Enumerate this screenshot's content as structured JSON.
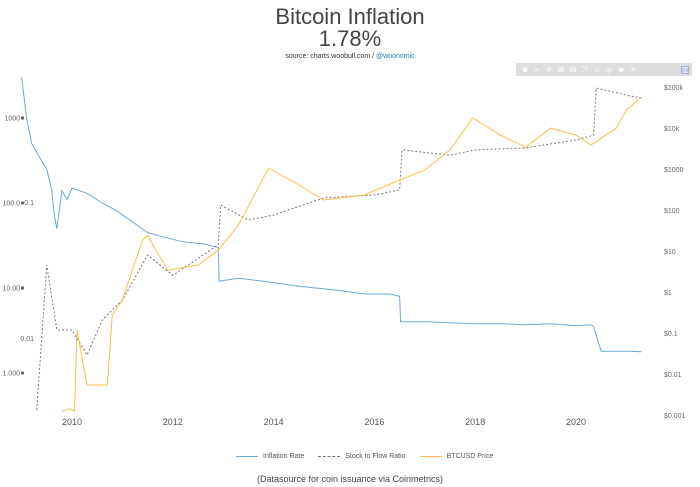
{
  "title": "Bitcoin Inflation",
  "subtitle": "1.78%",
  "source_prefix": "source: charts.woobull.com / ",
  "source_link": "@woonomic",
  "note": "(Datasource for coin issuance via Coinmetrics)",
  "modebar": [
    "camera-icon",
    "zoom-icon",
    "pan-icon",
    "zoom-in-icon",
    "zoom-out-icon",
    "autoscale-icon",
    "reset-axes-icon",
    "spike-lines-icon",
    "hover-closest-icon",
    "hover-compare-icon",
    "plotly-logo-icon"
  ],
  "chart_data": {
    "type": "line",
    "x_ticks": [
      "2010",
      "2012",
      "2014",
      "2016",
      "2018",
      "2020"
    ],
    "y_left_ticks": [
      "1000%",
      "100.0%",
      "10.00%",
      "1.000%"
    ],
    "y_left_inner_ticks": [
      "0.1",
      "0.01"
    ],
    "y_right_ticks": [
      "$100k",
      "$10k",
      "$1000",
      "$100",
      "$10",
      "$1",
      "$0.1",
      "$0.01",
      "$0.001"
    ],
    "y_left_scale": "log",
    "y_right_scale": "log",
    "legend_position": "bottom",
    "colors": {
      "inflation": "#6fa8d6",
      "s2f": "#777777",
      "price": "#f5c04a"
    },
    "series": [
      {
        "name": "Inflation Rate",
        "axis": "left",
        "unit": "%",
        "style": "solid",
        "x": [
          2009.0,
          2009.1,
          2009.2,
          2009.35,
          2009.5,
          2009.6,
          2009.65,
          2009.7,
          2009.8,
          2009.9,
          2010.0,
          2010.3,
          2010.6,
          2010.9,
          2011.2,
          2011.5,
          2011.8,
          2012.2,
          2012.6,
          2012.9,
          2012.92,
          2013.3,
          2013.8,
          2014.5,
          2015.2,
          2015.8,
          2016.3,
          2016.5,
          2016.52,
          2017.0,
          2017.5,
          2018.0,
          2018.5,
          2019.0,
          2019.5,
          2020.0,
          2020.3,
          2020.35,
          2020.5,
          2021.0,
          2021.3
        ],
        "values": [
          3000,
          1000,
          500,
          350,
          250,
          140,
          70,
          50,
          140,
          110,
          150,
          130,
          100,
          80,
          60,
          45,
          40,
          35,
          33,
          30,
          12,
          13,
          12,
          10.5,
          9.5,
          8.5,
          8.5,
          8,
          4,
          4,
          3.9,
          3.8,
          3.8,
          3.7,
          3.8,
          3.6,
          3.7,
          3.5,
          1.8,
          1.8,
          1.78
        ]
      },
      {
        "name": "Stock to Flow Ratio",
        "axis": "right",
        "style": "dashed",
        "x": [
          2009.3,
          2009.5,
          2009.7,
          2010.0,
          2010.3,
          2010.6,
          2011.0,
          2011.5,
          2012.0,
          2012.9,
          2012.95,
          2013.5,
          2014.0,
          2015.0,
          2016.0,
          2016.5,
          2016.55,
          2017.5,
          2018.0,
          2019.0,
          2020.0,
          2020.35,
          2020.4,
          2021.0,
          2021.3
        ],
        "values": [
          0.0014,
          4.8,
          0.125,
          0.125,
          0.031,
          0.22,
          0.68,
          8.4,
          2.7,
          15,
          140,
          60,
          80,
          210,
          245,
          325,
          3100,
          2300,
          3100,
          3450,
          5400,
          7100,
          100000,
          67000,
          57000
        ]
      },
      {
        "name": "BTCUSD Price",
        "axis": "right",
        "unit": "$",
        "style": "solid",
        "x": [
          2009.8,
          2009.95,
          2010.05,
          2010.1,
          2010.3,
          2010.7,
          2010.8,
          2011.0,
          2011.4,
          2011.5,
          2011.9,
          2012.5,
          2012.9,
          2013.3,
          2013.9,
          2014.5,
          2015.0,
          2015.8,
          2016.5,
          2017.0,
          2017.5,
          2017.95,
          2018.5,
          2019.0,
          2019.5,
          2020.0,
          2020.3,
          2020.8,
          2021.0,
          2021.3
        ],
        "values": [
          0.0013,
          0.0015,
          0.0013,
          0.125,
          0.0057,
          0.0057,
          0.29,
          0.68,
          19.6,
          25,
          3.6,
          4.8,
          11,
          45,
          1120,
          430,
          185,
          245,
          570,
          1000,
          3100,
          18500,
          7100,
          3600,
          10500,
          7100,
          4100,
          10500,
          29000,
          60000
        ]
      }
    ]
  }
}
